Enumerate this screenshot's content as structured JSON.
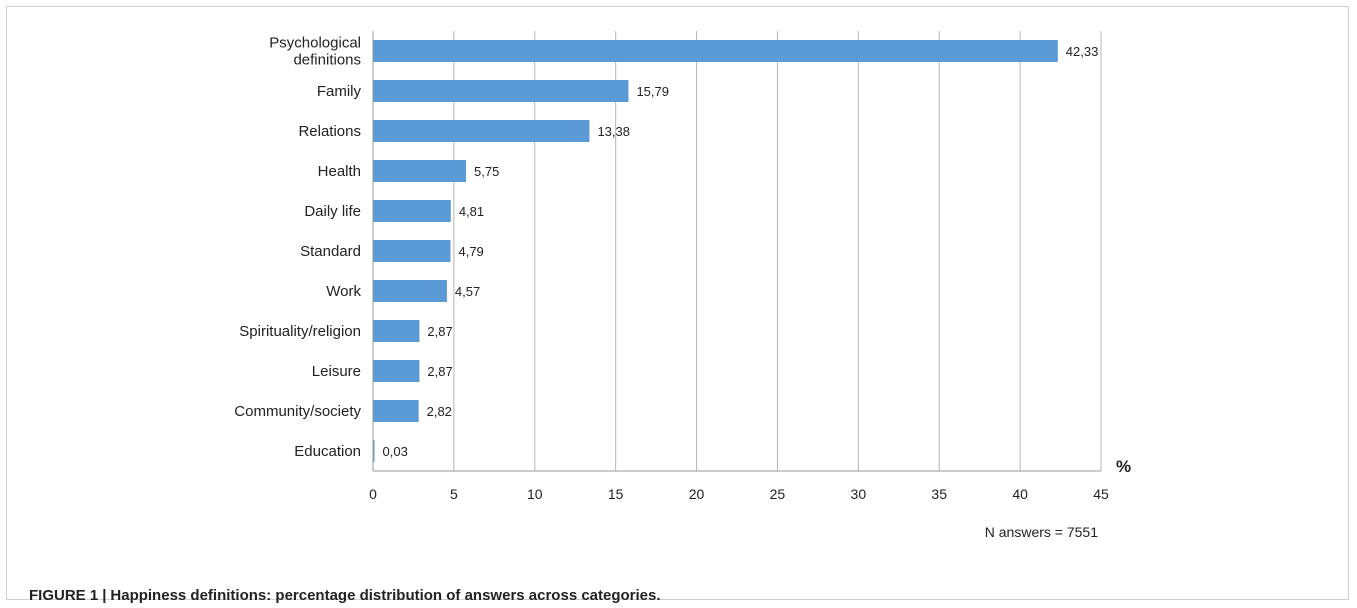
{
  "chart_data": {
    "type": "bar",
    "orientation": "horizontal",
    "categories": [
      "Psychological definitions",
      "Family",
      "Relations",
      "Health",
      "Daily life",
      "Standard",
      "Work",
      "Spirituality/religion",
      "Leisure",
      "Community/society",
      "Education"
    ],
    "category_lines": [
      [
        "Psychological",
        "definitions"
      ],
      [
        "Family"
      ],
      [
        "Relations"
      ],
      [
        "Health"
      ],
      [
        "Daily life"
      ],
      [
        "Standard"
      ],
      [
        "Work"
      ],
      [
        "Spirituality/religion"
      ],
      [
        "Leisure"
      ],
      [
        "Community/society"
      ],
      [
        "Education"
      ]
    ],
    "values": [
      42.33,
      15.79,
      13.38,
      5.75,
      4.81,
      4.79,
      4.57,
      2.87,
      2.87,
      2.82,
      0.03
    ],
    "value_labels": [
      "42,33",
      "15,79",
      "13,38",
      "5,75",
      "4,81",
      "4,79",
      "4,57",
      "2,87",
      "2,87",
      "2,82",
      "0,03"
    ],
    "xlim": [
      0,
      45
    ],
    "xticks": [
      0,
      5,
      10,
      15,
      20,
      25,
      30,
      35,
      40,
      45
    ],
    "xlabel": "%",
    "grid": "vertical",
    "bar_color": "#5b9bd5",
    "note": "N answers = 7551"
  },
  "caption": {
    "label": "FIGURE 1",
    "separator": "|",
    "text": "Happiness definitions: percentage distribution of answers across categories."
  }
}
